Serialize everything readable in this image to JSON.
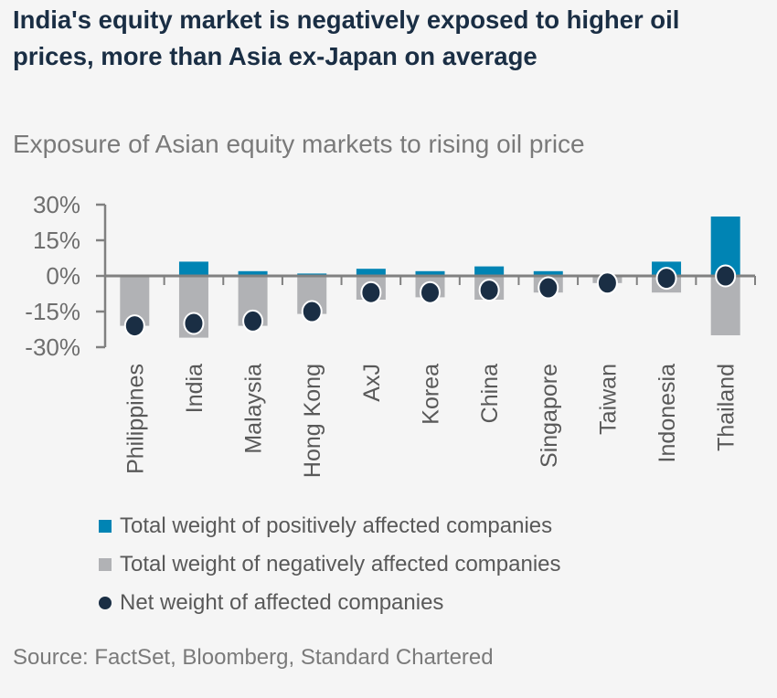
{
  "title": "India's equity market is negatively exposed to higher oil prices, more than Asia ex-Japan on average",
  "subtitle": "Exposure of Asian equity markets to rising oil price",
  "source": "Source: FactSet, Bloomberg, Standard Chartered",
  "colors": {
    "positive": "#0084b4",
    "negative": "#b1b2b5",
    "net": "#1a2e44",
    "axis": "#808080"
  },
  "chart_data": {
    "type": "bar",
    "title": "Exposure of Asian equity markets to rising oil price",
    "categories": [
      "Philippines",
      "India",
      "Malaysia",
      "Hong Kong",
      "AxJ",
      "Korea",
      "China",
      "Singapore",
      "Taiwan",
      "Indonesia",
      "Thailand"
    ],
    "series": [
      {
        "name": "Total weight of positively affected companies",
        "type": "bar",
        "values": [
          0,
          6,
          2,
          1,
          3,
          2,
          4,
          2,
          0,
          6,
          25
        ]
      },
      {
        "name": "Total weight of negatively affected companies",
        "type": "bar",
        "values": [
          -21,
          -26,
          -21,
          -16,
          -10,
          -9,
          -10,
          -7,
          -3,
          -7,
          -25
        ]
      },
      {
        "name": "Net weight of affected companies",
        "type": "scatter",
        "values": [
          -21,
          -20,
          -19,
          -15,
          -7,
          -7,
          -6,
          -5,
          -3,
          -1,
          0
        ]
      }
    ],
    "ylim": [
      -30,
      30
    ],
    "yticks": [
      30,
      15,
      0,
      -15,
      -30
    ],
    "ytick_labels": [
      "30%",
      "15%",
      "0%",
      "-15%",
      "-30%"
    ],
    "xlabel": "",
    "ylabel": "",
    "legend_position": "bottom"
  }
}
